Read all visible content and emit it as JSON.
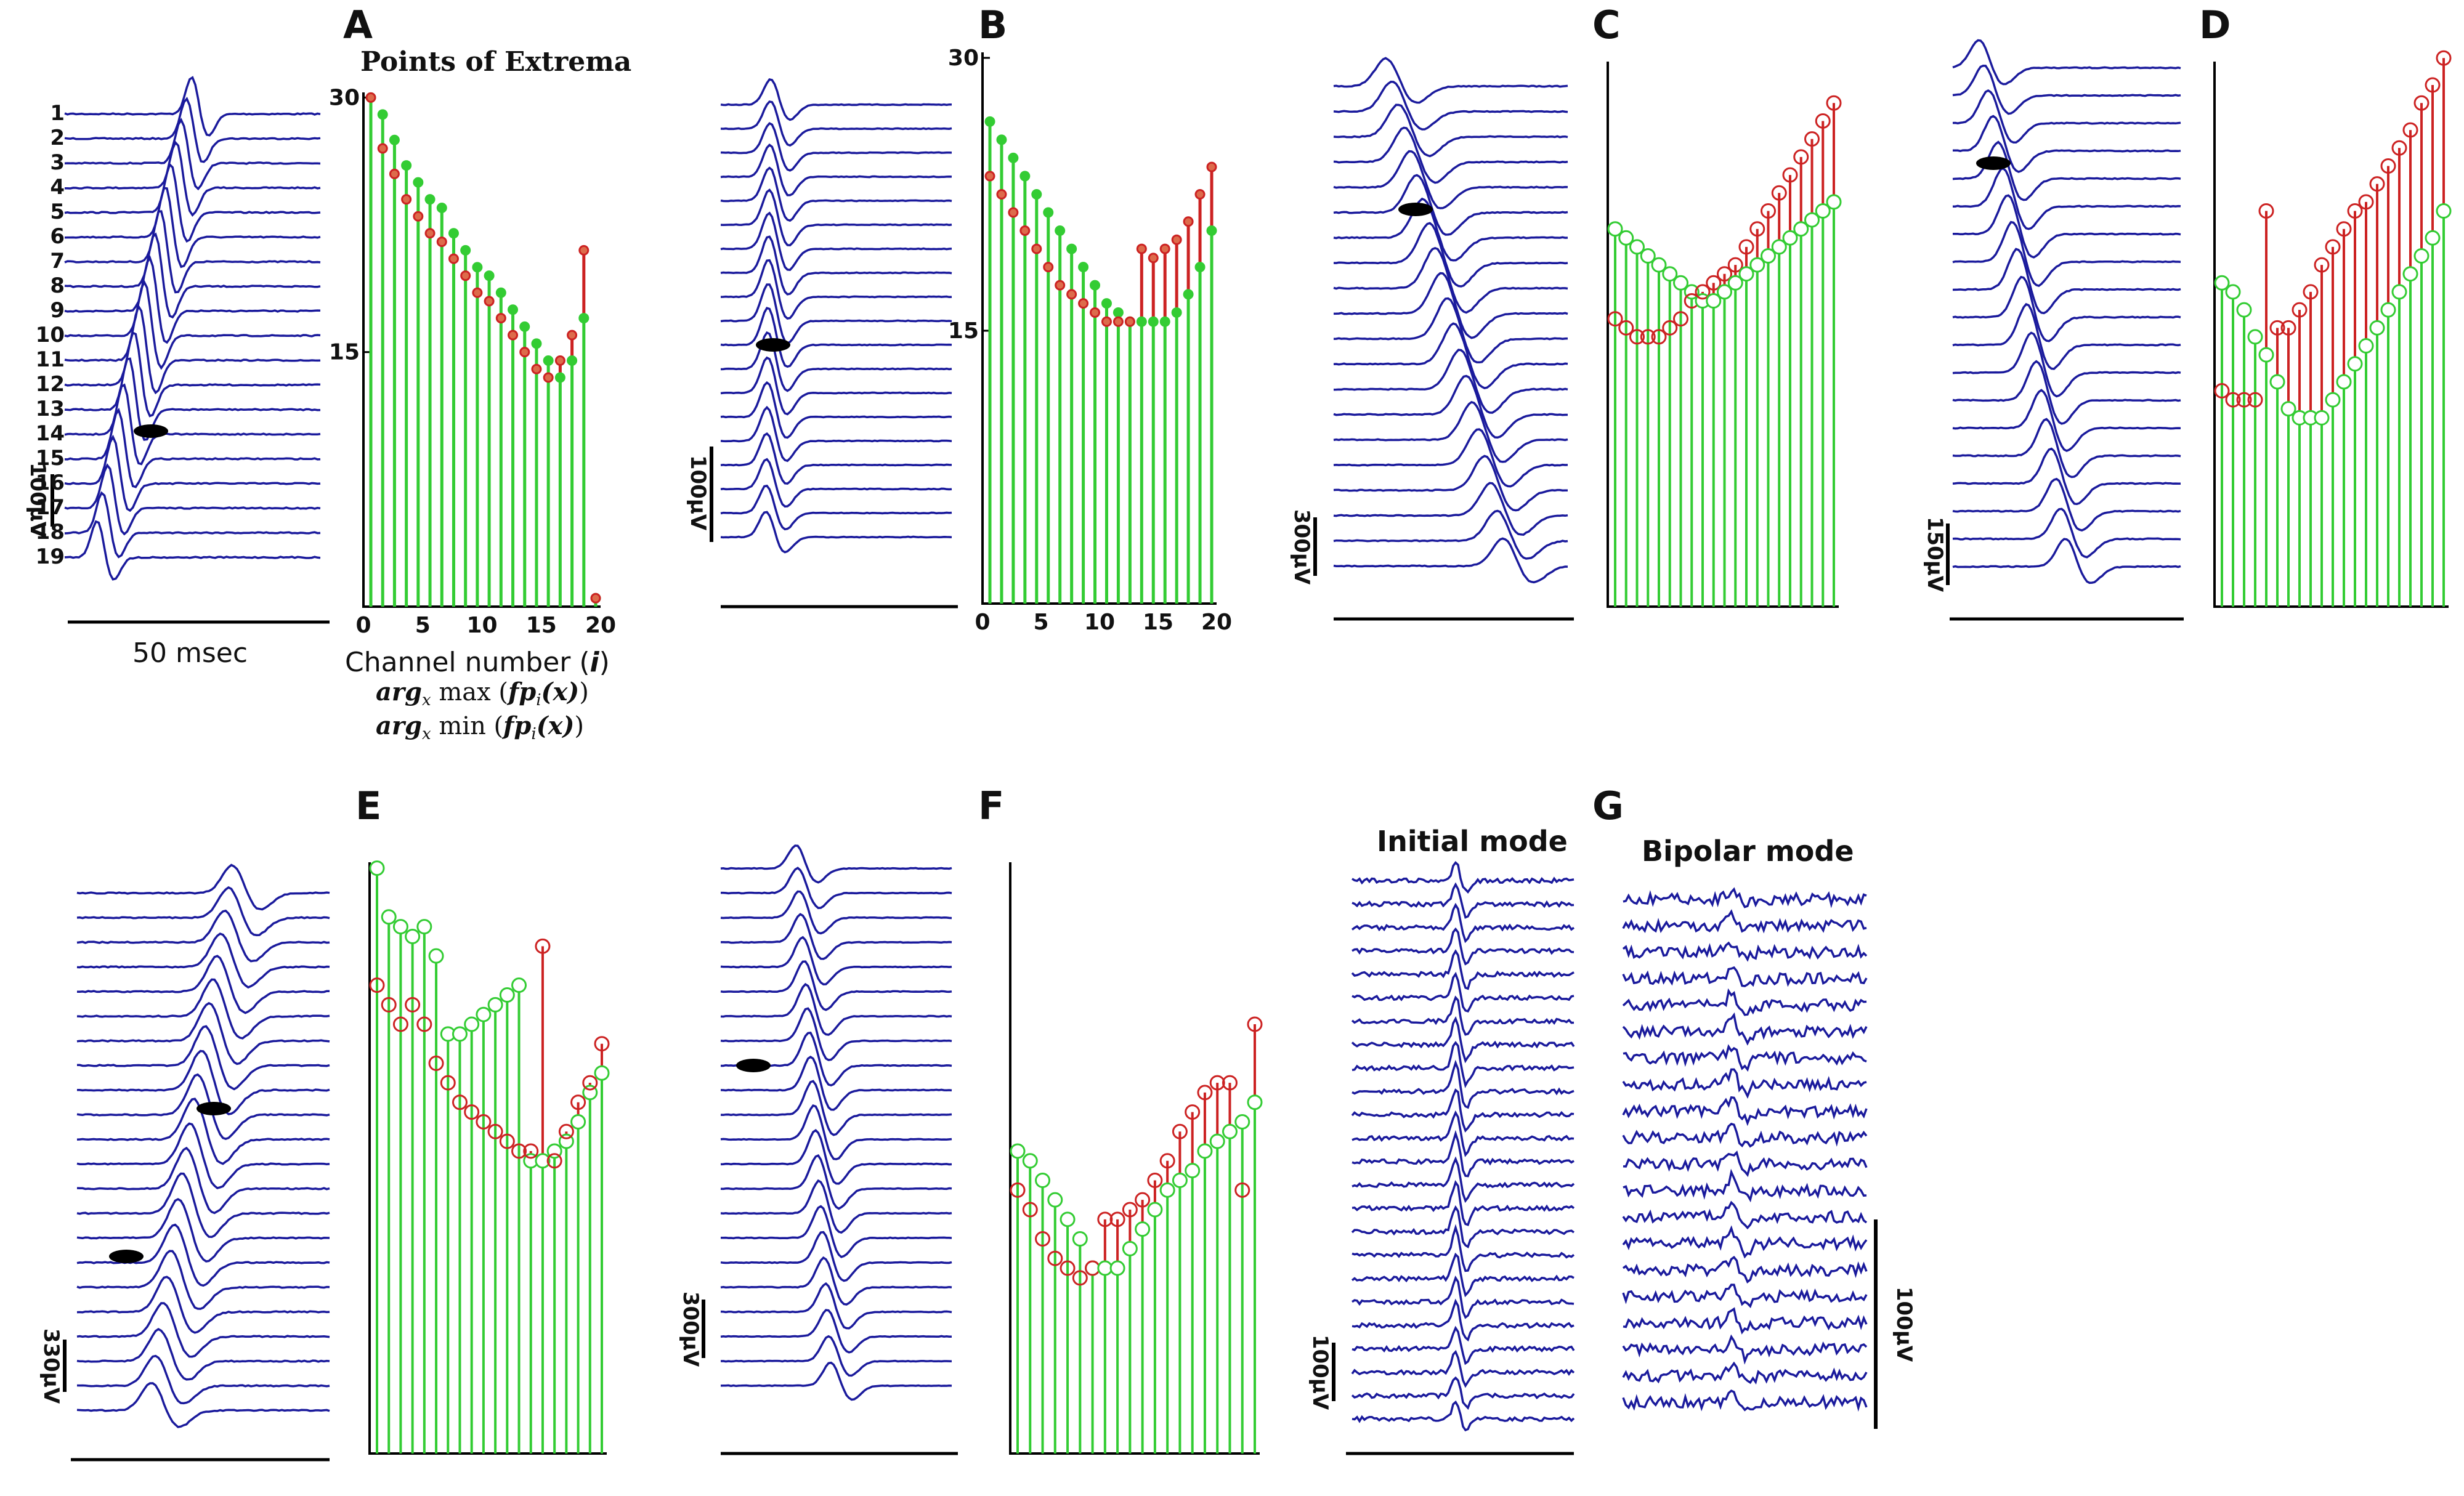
{
  "figure": {
    "panel_letters": [
      "A",
      "B",
      "C",
      "D",
      "E",
      "F",
      "G"
    ],
    "title": "Points of Extrema",
    "time_scale": "50 msec",
    "x_axis_label": "Channel number (i)",
    "legend_max": "arg_x max (fp_i(x))",
    "legend_min": "arg_x min (fp_i(x))",
    "initial_mode_label": "Initial mode",
    "bipolar_mode_label": "Bipolar mode",
    "channel_labels": [
      "1",
      "2",
      "3",
      "4",
      "5",
      "6",
      "7",
      "8",
      "9",
      "10",
      "11",
      "12",
      "13",
      "14",
      "15",
      "16",
      "17",
      "18",
      "19"
    ],
    "colors": {
      "trace": "#1a1a9c",
      "max": "#33cc33",
      "min": "#cc2222",
      "axis": "#000000"
    }
  },
  "chart_data": [
    {
      "panel": "A",
      "type": "stem",
      "scale_bar": "100µV",
      "ylim": [
        0,
        30
      ],
      "yticks": [
        "30",
        "15"
      ],
      "xlim": [
        0,
        20
      ],
      "xticks": [
        "0",
        "5",
        "10",
        "15",
        "20"
      ],
      "channels": [
        1,
        2,
        3,
        4,
        5,
        6,
        7,
        8,
        9,
        10,
        11,
        12,
        13,
        14,
        15,
        16,
        17,
        18,
        19,
        20
      ],
      "argmax": [
        30,
        29,
        27.5,
        26,
        25,
        24,
        23.5,
        22,
        21,
        20,
        19.5,
        18.5,
        17.5,
        16.5,
        15.5,
        14.5,
        13.5,
        14.5,
        17,
        0.5
      ],
      "argmin": [
        30,
        27,
        25.5,
        24,
        23,
        22,
        21.5,
        20.5,
        19.5,
        18.5,
        18,
        17,
        16,
        15,
        14,
        13.5,
        14.5,
        16,
        21,
        0.5
      ]
    },
    {
      "panel": "B",
      "type": "stem",
      "scale_bar": "100µV",
      "ylim": [
        0,
        30
      ],
      "yticks": [
        "30",
        "15"
      ],
      "xlim": [
        0,
        20
      ],
      "xticks": [
        "0",
        "5",
        "10",
        "15",
        "20"
      ],
      "channels": [
        1,
        2,
        3,
        4,
        5,
        6,
        7,
        8,
        9,
        10,
        11,
        12,
        13,
        14,
        15,
        16,
        17,
        18,
        19,
        20
      ],
      "argmax": [
        26.5,
        25.5,
        24.5,
        23.5,
        22.5,
        21.5,
        20.5,
        19.5,
        18.5,
        17.5,
        16.5,
        16,
        15.5,
        15.5,
        15.5,
        15.5,
        16,
        17,
        18.5,
        20.5
      ],
      "argmin": [
        23.5,
        22.5,
        21.5,
        20.5,
        19.5,
        18.5,
        17.5,
        17,
        16.5,
        16,
        15.5,
        15.5,
        15.5,
        19.5,
        19,
        19.5,
        20,
        21,
        22.5,
        24
      ]
    },
    {
      "panel": "C",
      "type": "stem",
      "scale_bar": "300µV",
      "ylim": [
        0,
        30
      ],
      "yticks": [],
      "channels": [
        1,
        2,
        3,
        4,
        5,
        6,
        7,
        8,
        9,
        10,
        11,
        12,
        13,
        14,
        15,
        16,
        17,
        18,
        19,
        20,
        21
      ],
      "argmax": [
        21,
        20.5,
        20,
        19.5,
        19,
        18.5,
        18,
        17.5,
        17,
        17,
        17.5,
        18,
        18.5,
        19,
        19.5,
        20,
        20.5,
        21,
        21.5,
        22,
        22.5
      ],
      "argmin": [
        16,
        15.5,
        15,
        15,
        15,
        15.5,
        16,
        17,
        17.5,
        18,
        18.5,
        19,
        20,
        21,
        22,
        23,
        24,
        25,
        26,
        27,
        28
      ]
    },
    {
      "panel": "D",
      "type": "stem",
      "scale_bar": "150µV",
      "ylim": [
        0,
        30
      ],
      "yticks": [],
      "channels": [
        1,
        2,
        3,
        4,
        5,
        6,
        7,
        8,
        9,
        10,
        11,
        12,
        13,
        14,
        15,
        16,
        17,
        18,
        19,
        20,
        21
      ],
      "argmax": [
        18,
        17.5,
        16.5,
        15,
        14,
        12.5,
        11,
        10.5,
        10.5,
        10.5,
        11.5,
        12.5,
        13.5,
        14.5,
        15.5,
        16.5,
        17.5,
        18.5,
        19.5,
        20.5,
        22
      ],
      "argmin": [
        12,
        11.5,
        11.5,
        11.5,
        22,
        15.5,
        15.5,
        16.5,
        17.5,
        19,
        20,
        21,
        22,
        22.5,
        23.5,
        24.5,
        25.5,
        26.5,
        28,
        29,
        30.5
      ]
    },
    {
      "panel": "E",
      "type": "stem",
      "scale_bar": "330µV",
      "ylim": [
        0,
        30
      ],
      "yticks": [],
      "channels": [
        1,
        2,
        3,
        4,
        5,
        6,
        7,
        8,
        9,
        10,
        11,
        12,
        13,
        14,
        15,
        16,
        17,
        18,
        19,
        20
      ],
      "argmax": [
        30,
        27.5,
        27,
        26.5,
        27,
        25.5,
        21.5,
        21.5,
        22,
        22.5,
        23,
        23.5,
        24,
        15,
        15,
        15.5,
        16,
        17,
        18.5,
        19.5
      ],
      "argmin": [
        24,
        23,
        22,
        23,
        22,
        20,
        19,
        18,
        17.5,
        17,
        16.5,
        16,
        15.5,
        15.5,
        26,
        15,
        16.5,
        18,
        19,
        21
      ],
      "min_stems_shown": [
        14
      ]
    },
    {
      "panel": "F",
      "type": "stem",
      "scale_bar": "300µV",
      "ylim": [
        0,
        30
      ],
      "yticks": [],
      "channels": [
        1,
        2,
        3,
        4,
        5,
        6,
        7,
        8,
        9,
        10,
        11,
        12,
        13,
        14,
        15,
        16,
        17,
        18,
        19,
        20
      ],
      "argmax": [
        15.5,
        15,
        14,
        13,
        12,
        11,
        9.5,
        9.5,
        9.5,
        10.5,
        11.5,
        12.5,
        13.5,
        14,
        14.5,
        15.5,
        16,
        16.5,
        17,
        18
      ],
      "argmin": [
        13.5,
        12.5,
        11,
        10,
        9.5,
        9,
        9.5,
        12,
        12,
        12.5,
        13,
        14,
        15,
        16.5,
        17.5,
        18.5,
        19,
        19,
        13.5,
        22
      ]
    }
  ]
}
